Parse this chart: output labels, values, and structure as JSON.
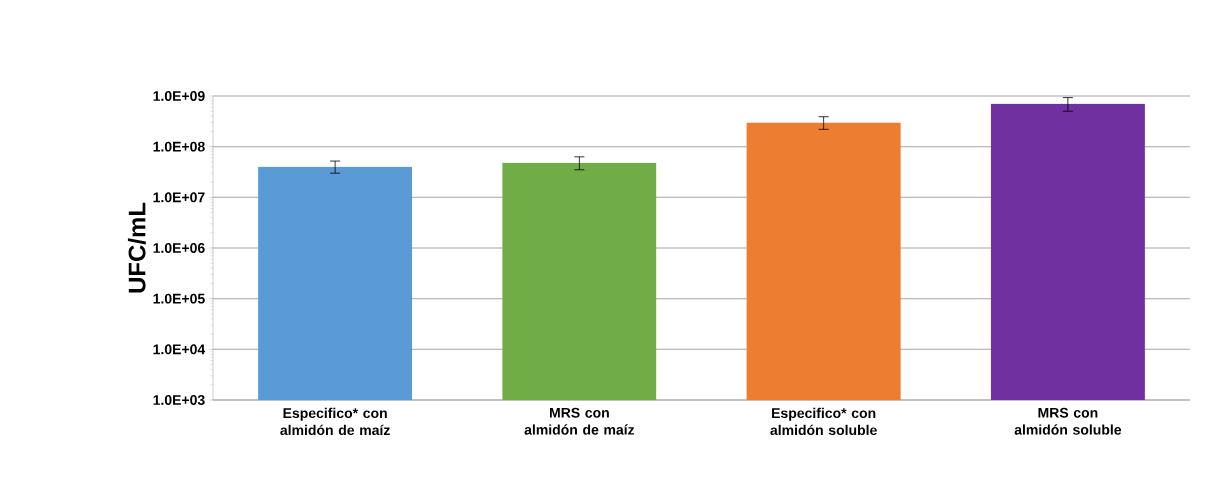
{
  "chart_data": {
    "type": "bar",
    "ylabel": "UFC/mL",
    "log": true,
    "grid": "y",
    "categories": [
      "Especifico* con almidón de maíz",
      "MRS con almidón de maíz",
      "Especifico* con almidón soluble",
      "MRS con almidón soluble"
    ],
    "values": [
      40000000,
      48000000,
      300000000,
      700000000
    ],
    "errors": [
      [
        30000000,
        52000000
      ],
      [
        35000000,
        63000000
      ],
      [
        220000000,
        390000000
      ],
      [
        500000000,
        930000000
      ]
    ],
    "colors": [
      "#5b9bd5",
      "#70ad47",
      "#ed7d31",
      "#7030a0"
    ],
    "ylim": [
      1000,
      1000000000
    ],
    "yticks": [
      {
        "value": 1000,
        "label": "1.0E+03"
      },
      {
        "value": 10000,
        "label": "1.0E+04"
      },
      {
        "value": 100000,
        "label": "1.0E+05"
      },
      {
        "value": 1000000,
        "label": "1.0E+06"
      },
      {
        "value": 10000000,
        "label": "1.0E+07"
      },
      {
        "value": 100000000,
        "label": "1.0E+08"
      },
      {
        "value": 1000000000,
        "label": "1.0E+09"
      }
    ]
  }
}
